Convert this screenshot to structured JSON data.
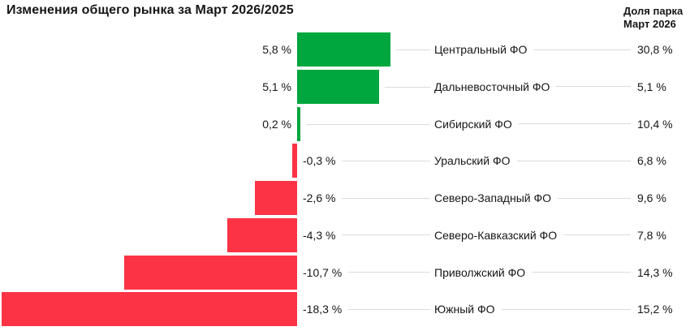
{
  "header": {
    "title": "Изменения общего рынка за Март 2026/2025",
    "share_column": {
      "line1": "Доля парка",
      "line2": "Март 2026"
    }
  },
  "colors": {
    "positive_bar": "#00A63E",
    "negative_bar": "#FC3344",
    "leader_line": "#DBDBDB",
    "text": "#161616"
  },
  "chart_data": {
    "type": "bar",
    "orientation": "horizontal",
    "title": "Изменения общего рынка за Март 2026/2025",
    "share_header": "Доля парка Март 2026",
    "value_suffix": "%",
    "categories": [
      "Центральный ФО",
      "Дальневосточный ФО",
      "Сибирский ФО",
      "Уральский ФО",
      "Северо-Западный ФО",
      "Северо-Кавказский ФО",
      "Приволжский ФО",
      "Южный ФО"
    ],
    "values": [
      5.8,
      5.1,
      0.2,
      -0.3,
      -2.6,
      -4.3,
      -10.7,
      -18.3
    ],
    "shares": [
      30.8,
      5.1,
      10.4,
      6.8,
      9.6,
      7.8,
      14.3,
      15.2
    ],
    "rows": [
      {
        "region": "Центральный ФО",
        "change": 5.8,
        "change_label": "5,8 %",
        "share_label": "30,8 %"
      },
      {
        "region": "Дальневосточный ФО",
        "change": 5.1,
        "change_label": "5,1 %",
        "share_label": "5,1 %"
      },
      {
        "region": "Сибирский ФО",
        "change": 0.2,
        "change_label": "0,2 %",
        "share_label": "10,4 %"
      },
      {
        "region": "Уральский ФО",
        "change": -0.3,
        "change_label": "-0,3 %",
        "share_label": "6,8 %"
      },
      {
        "region": "Северо-Западный ФО",
        "change": -2.6,
        "change_label": "-2,6 %",
        "share_label": "9,6 %"
      },
      {
        "region": "Северо-Кавказский ФО",
        "change": -4.3,
        "change_label": "-4,3 %",
        "share_label": "7,8 %"
      },
      {
        "region": "Приволжский ФО",
        "change": -10.7,
        "change_label": "-10,7 %",
        "share_label": "14,3 %"
      },
      {
        "region": "Южный ФО",
        "change": -18.3,
        "change_label": "-18,3 %",
        "share_label": "15,2 %"
      }
    ]
  }
}
